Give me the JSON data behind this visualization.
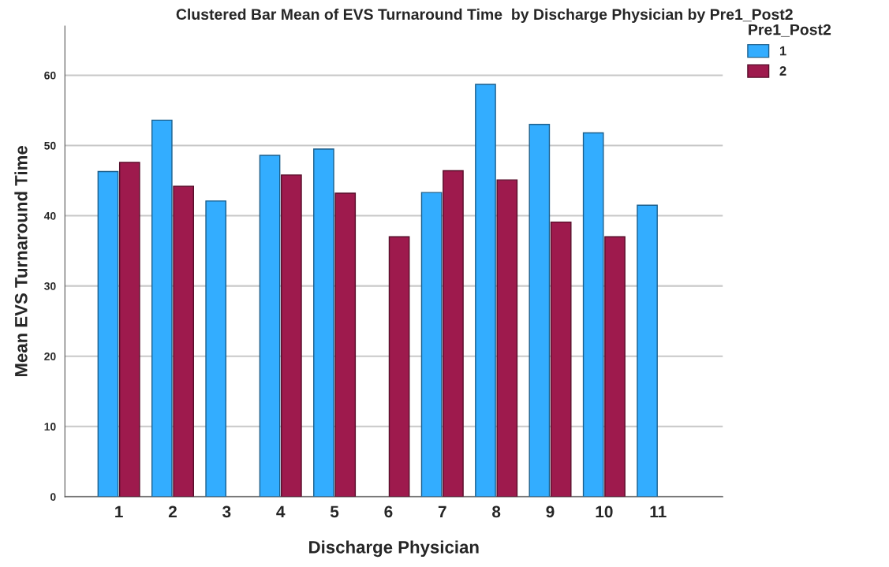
{
  "chart_data": {
    "type": "bar",
    "title": "Clustered Bar Mean of EVS Turnaround Time  by Discharge Physician by Pre1_Post2",
    "xlabel": "Discharge Physician",
    "ylabel": "Mean EVS Turnaround Time",
    "legend_title": "Pre1_Post2",
    "categories": [
      "1",
      "2",
      "3",
      "4",
      "5",
      "6",
      "7",
      "8",
      "9",
      "10",
      "11"
    ],
    "series": [
      {
        "name": "1",
        "color": "#33adff",
        "values": [
          46.3,
          53.6,
          42.1,
          48.6,
          49.5,
          null,
          43.3,
          58.7,
          53.0,
          51.8,
          41.5
        ]
      },
      {
        "name": "2",
        "color": "#9e1a4d",
        "values": [
          47.6,
          44.2,
          null,
          45.8,
          43.2,
          37.0,
          46.4,
          45.1,
          39.1,
          37.0,
          null
        ]
      }
    ],
    "ylim": [
      0,
      67
    ],
    "yticks": [
      0,
      10,
      20,
      30,
      40,
      50,
      60
    ],
    "grid": "y",
    "legend": "top right"
  }
}
